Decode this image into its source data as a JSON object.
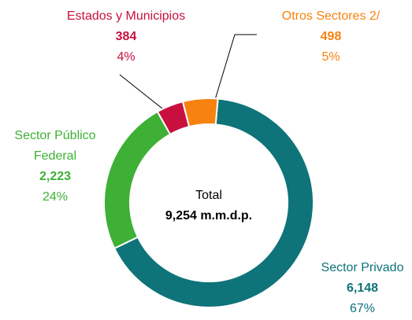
{
  "chart_data": {
    "type": "donut",
    "categories": [
      "Sector Privado",
      "Sector Público Federal",
      "Estados y Municipios",
      "Otros Sectores 2/"
    ],
    "values": [
      6148,
      2223,
      384,
      498
    ],
    "value_labels": [
      "6,148",
      "2,223",
      "384",
      "498"
    ],
    "percent_labels": [
      "67%",
      "24%",
      "4%",
      "5%"
    ],
    "colors": [
      "#0e7479",
      "#3db035",
      "#c8103e",
      "#f7820f"
    ],
    "center_title": "Total",
    "center_value": "9,254 m.m.d.p."
  }
}
